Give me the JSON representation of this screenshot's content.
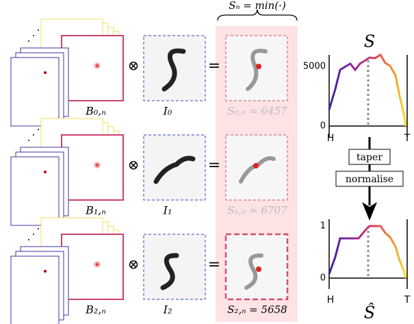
{
  "header": {
    "formula": "Sₙ = min(·)"
  },
  "operators": {
    "convolve": "⊗",
    "equals": "="
  },
  "rows": [
    {
      "filter_label": "B₀,ₙ",
      "image_label": "I₀",
      "score_label": "S₀,ₙ = 6457"
    },
    {
      "filter_label": "B₁,ₙ",
      "image_label": "I₁",
      "score_label": "S₁,ₙ = 6707"
    },
    {
      "filter_label": "B₂,ₙ",
      "image_label": "I₂",
      "score_label": "S₂,ₙ = 5658"
    }
  ],
  "plot_top": {
    "title": "S",
    "yticks": [
      "5000",
      "0"
    ],
    "xlabels": [
      "H",
      "T"
    ]
  },
  "steps": [
    "taper",
    "normalise"
  ],
  "plot_bottom": {
    "title": "Ŝ",
    "yticks": [
      "1",
      "0"
    ],
    "xlabels": [
      "H",
      "T"
    ]
  }
}
